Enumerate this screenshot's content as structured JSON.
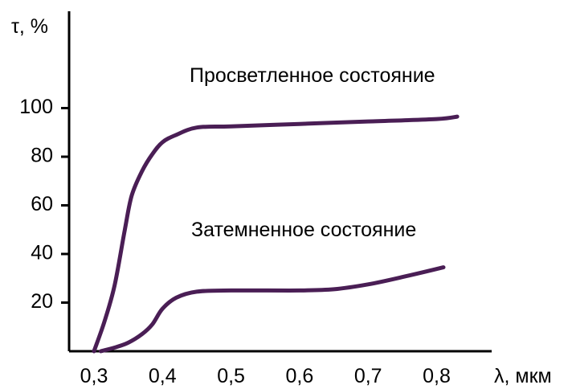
{
  "chart_data": {
    "type": "line",
    "title": "",
    "xlabel": "λ, мкм",
    "ylabel": "τ, %",
    "xlim": [
      0.3,
      0.86
    ],
    "ylim": [
      0,
      105
    ],
    "x_ticks": [
      0.3,
      0.4,
      0.5,
      0.6,
      0.7,
      0.8
    ],
    "x_tick_labels": [
      "0,3",
      "0,4",
      "0,5",
      "0,6",
      "0,7",
      "0,8"
    ],
    "y_ticks": [
      20,
      40,
      60,
      80,
      100
    ],
    "y_tick_labels": [
      "20",
      "40",
      "60",
      "80",
      "100"
    ],
    "grid": false,
    "legend": "none",
    "line_color": "#4a1e55",
    "series": [
      {
        "name": "Просветленное состояние",
        "x": [
          0.3,
          0.315,
          0.33,
          0.345,
          0.355,
          0.37,
          0.385,
          0.4,
          0.42,
          0.45,
          0.5,
          0.6,
          0.7,
          0.8,
          0.83
        ],
        "y": [
          0,
          12,
          27,
          50,
          64,
          74,
          81,
          86,
          89,
          92,
          92.5,
          93.5,
          94.5,
          95.5,
          96.5
        ]
      },
      {
        "name": "Затемненное состояние",
        "x": [
          0.31,
          0.33,
          0.35,
          0.37,
          0.385,
          0.4,
          0.42,
          0.45,
          0.5,
          0.6,
          0.65,
          0.7,
          0.75,
          0.81
        ],
        "y": [
          0,
          1.5,
          3.5,
          7,
          11,
          17.5,
          22,
          24.5,
          25,
          25,
          25.5,
          27.5,
          30.5,
          34.5
        ]
      }
    ]
  }
}
